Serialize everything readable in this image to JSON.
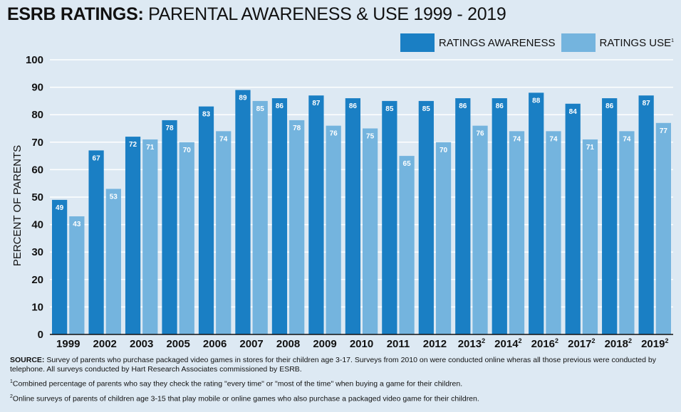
{
  "colors": {
    "background": "#dde9f3",
    "awareness": "#1a7fc4",
    "use": "#74b4de",
    "grid": "#ffffff"
  },
  "chart_data": {
    "type": "bar",
    "title_bold": "ESRB RATINGS:",
    "title_rest": "PARENTAL AWARENESS & USE  1999 - 2019",
    "ylabel": "PERCENT OF PARENTS",
    "ylim": [
      0,
      100
    ],
    "yticks": [
      0,
      10,
      20,
      30,
      40,
      50,
      60,
      70,
      80,
      90,
      100
    ],
    "grid": true,
    "legend_position": "top-right",
    "categories": [
      "1999",
      "2002",
      "2003",
      "2005",
      "2006",
      "2007",
      "2008",
      "2009",
      "2010",
      "2011",
      "2012",
      "2013",
      "2014",
      "2016",
      "2017",
      "2018",
      "2019"
    ],
    "category_superscripts": [
      "",
      "",
      "",
      "",
      "",
      "",
      "",
      "",
      "",
      "",
      "",
      "2",
      "2",
      "2",
      "2",
      "2",
      "2"
    ],
    "series": [
      {
        "name": "RATINGS AWARENESS",
        "values": [
          49,
          67,
          72,
          78,
          83,
          89,
          86,
          87,
          86,
          85,
          85,
          86,
          86,
          88,
          84,
          86,
          87
        ]
      },
      {
        "name": "RATINGS USE",
        "name_superscript": "1",
        "values": [
          43,
          53,
          71,
          70,
          74,
          85,
          78,
          76,
          75,
          65,
          70,
          76,
          74,
          74,
          71,
          74,
          77
        ]
      }
    ]
  },
  "footnotes": {
    "source_label": "SOURCE:",
    "source_text": " Survey of parents who purchase packaged video games in stores for their children age 3-17. Surveys from 2010 on were conducted online wheras all those previous were conducted by telephone. All surveys conducted by Hart Research Associates commissioned by ESRB.",
    "note1_marker": "1",
    "note1_text": "Combined percentage of parents who say they check the rating \"every time\" or \"most of the time\" when buying a game for their children.",
    "note2_marker": "2",
    "note2_text": "Online surveys of parents of children age 3-15 that play mobile or online games who also purchase a packaged video game for their children."
  }
}
